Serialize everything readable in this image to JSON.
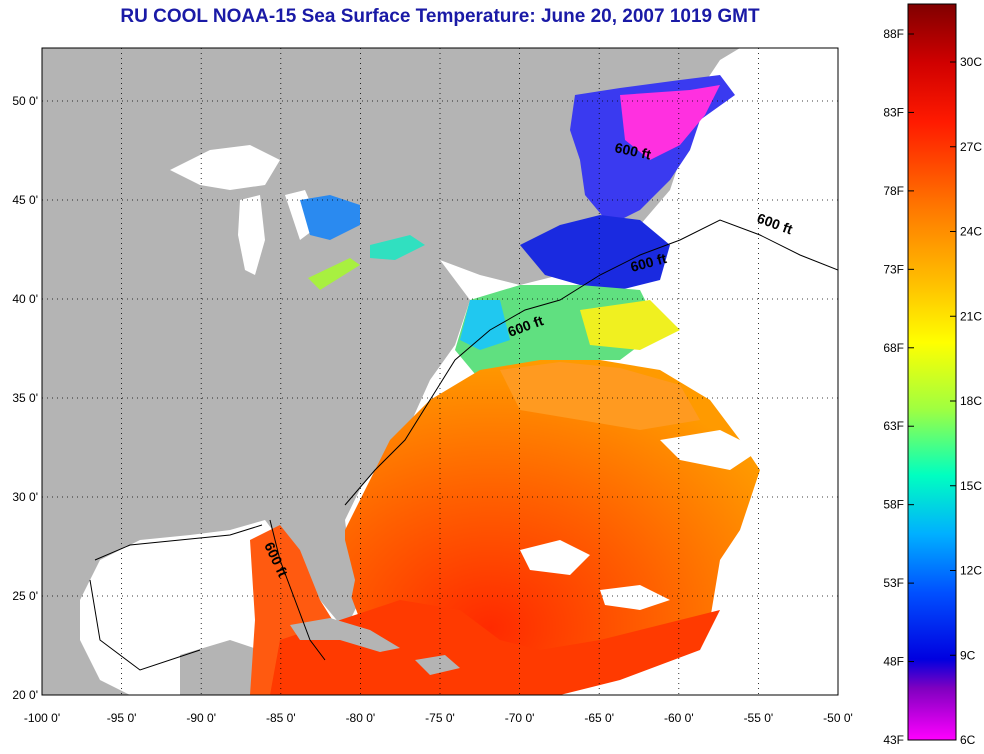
{
  "title": "RU COOL  NOAA-15  Sea Surface Temperature:  June 20, 2007 1019 GMT",
  "map": {
    "x_ticks": [
      "-100 0'",
      "-95 0'",
      "-90 0'",
      "-85 0'",
      "-80 0'",
      "-75 0'",
      "-70 0'",
      "-65 0'",
      "-60 0'",
      "-55 0'",
      "-50 0'"
    ],
    "y_ticks": [
      "50 0'",
      "45 0'",
      "40 0'",
      "35 0'",
      "30 0'",
      "25 0'",
      "20 0'"
    ],
    "contour_labels": [
      "600 ft",
      "600 ft",
      "600 ft",
      "600 ft",
      "600 ft"
    ],
    "colors": {
      "land": "#b4b4b4",
      "no_data": "#ffffff"
    }
  },
  "colorbar": {
    "fahrenheit_labels": [
      "88F",
      "83F",
      "78F",
      "73F",
      "68F",
      "63F",
      "58F",
      "53F",
      "48F",
      "43F"
    ],
    "celsius_labels": [
      "30C",
      "27C",
      "24C",
      "21C",
      "18C",
      "15C",
      "12C",
      "9C",
      "6C"
    ]
  }
}
